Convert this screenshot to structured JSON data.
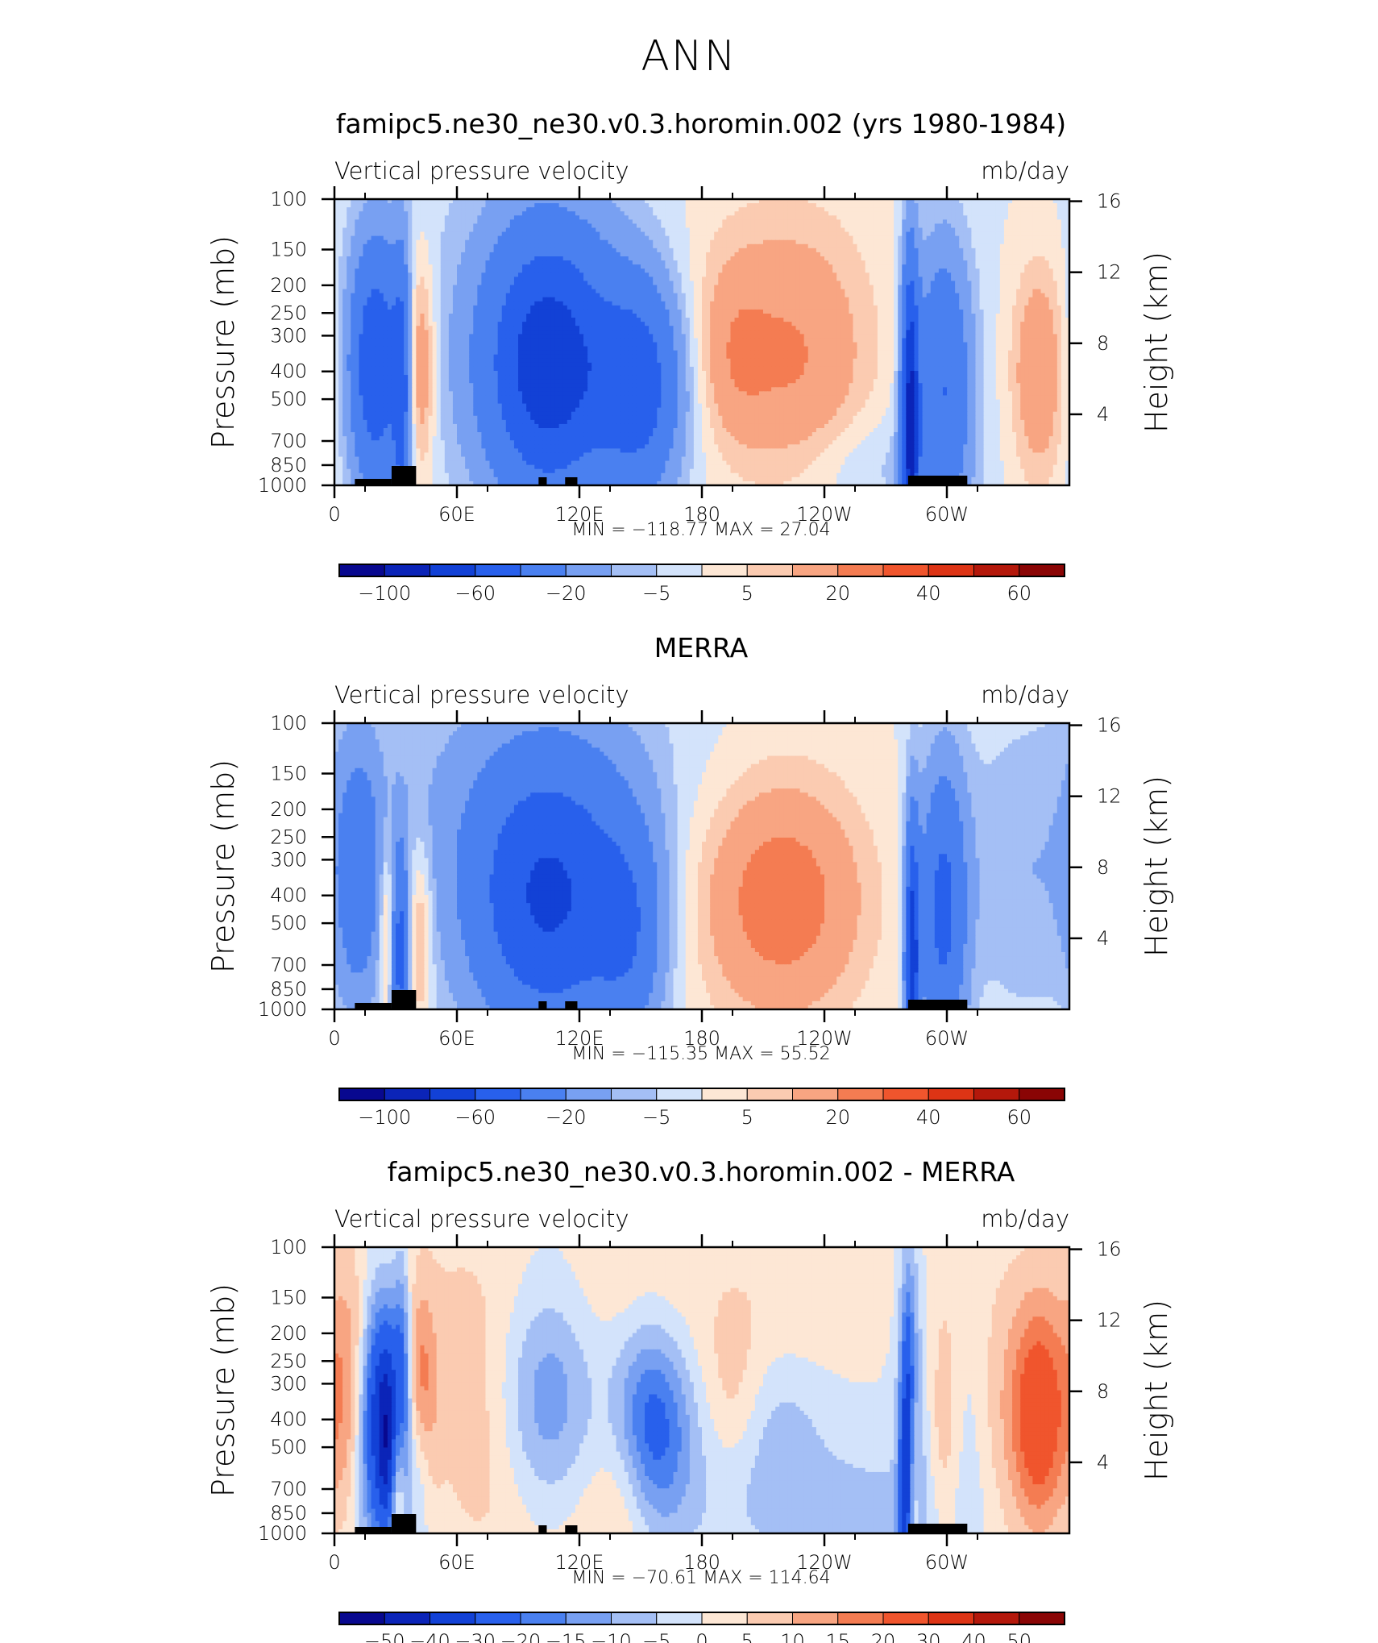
{
  "title": "ANN",
  "colors": {
    "neg": [
      "#08088f",
      "#0b24b8",
      "#1241d6",
      "#2860ec",
      "#4a80f0",
      "#78a0f2",
      "#a4bff5",
      "#d3e3fb"
    ],
    "pos": [
      "#fde7d5",
      "#fbcbb1",
      "#f8a582",
      "#f47c52",
      "#f0552d",
      "#dd3415",
      "#b4180b",
      "#8a0505"
    ]
  },
  "chart_data": [
    {
      "type": "heatmap",
      "title": "famipc5.ne30_ne30.v0.3.horomin.002 (yrs 1980-1984)",
      "variable": "Vertical pressure velocity",
      "units": "mb/day",
      "ylabel": "Pressure (mb)",
      "y2label": "Height (km)",
      "x_ticks": [
        "0",
        "60E",
        "120E",
        "180",
        "120W",
        "60W"
      ],
      "y_ticks": [
        "100",
        "150",
        "200",
        "250",
        "300",
        "400",
        "500",
        "700",
        "850",
        "1000"
      ],
      "y2_ticks": [
        "16",
        "12",
        "8",
        "4"
      ],
      "min_max_text": "MIN = −118.77   MAX =   27.04",
      "min": -118.77,
      "max": 27.04,
      "colorbar_labels": [
        "−100",
        "−60",
        "−20",
        "−5",
        "5",
        "20",
        "40",
        "60"
      ]
    },
    {
      "type": "heatmap",
      "title": "MERRA",
      "variable": "Vertical pressure velocity",
      "units": "mb/day",
      "ylabel": "Pressure (mb)",
      "y2label": "Height (km)",
      "x_ticks": [
        "0",
        "60E",
        "120E",
        "180",
        "120W",
        "60W"
      ],
      "y_ticks": [
        "100",
        "150",
        "200",
        "250",
        "300",
        "400",
        "500",
        "700",
        "850",
        "1000"
      ],
      "y2_ticks": [
        "16",
        "12",
        "8",
        "4"
      ],
      "min_max_text": "MIN = −115.35   MAX =   55.52",
      "min": -115.35,
      "max": 55.52,
      "colorbar_labels": [
        "−100",
        "−60",
        "−20",
        "−5",
        "5",
        "20",
        "40",
        "60"
      ]
    },
    {
      "type": "heatmap",
      "title": "famipc5.ne30_ne30.v0.3.horomin.002 - MERRA",
      "variable": "Vertical pressure velocity",
      "units": "mb/day",
      "ylabel": "Pressure (mb)",
      "y2label": "Height (km)",
      "x_ticks": [
        "0",
        "60E",
        "120E",
        "180",
        "120W",
        "60W"
      ],
      "y_ticks": [
        "100",
        "150",
        "200",
        "250",
        "300",
        "400",
        "500",
        "700",
        "850",
        "1000"
      ],
      "y2_ticks": [
        "16",
        "12",
        "8",
        "4"
      ],
      "min_max_text": "MIN = −70.61   MAX = 114.64",
      "min": -70.61,
      "max": 114.64,
      "colorbar_labels": [
        "−50",
        "−40",
        "−30",
        "−20",
        "−15",
        "−10",
        "−5",
        "0",
        "5",
        "10",
        "15",
        "20",
        "30",
        "40",
        "50"
      ]
    }
  ]
}
